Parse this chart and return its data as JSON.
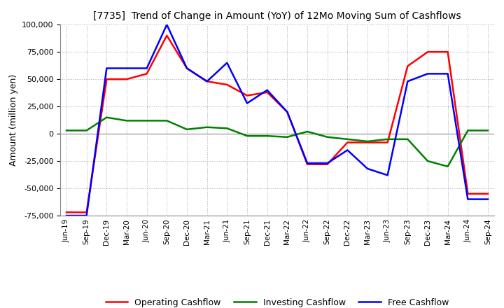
{
  "title": "[7735]  Trend of Change in Amount (YoY) of 12Mo Moving Sum of Cashflows",
  "ylabel": "Amount (million yen)",
  "x_labels": [
    "Jun-19",
    "Sep-19",
    "Dec-19",
    "Mar-20",
    "Jun-20",
    "Sep-20",
    "Dec-20",
    "Mar-21",
    "Jun-21",
    "Sep-21",
    "Dec-21",
    "Mar-22",
    "Jun-22",
    "Sep-22",
    "Dec-22",
    "Mar-23",
    "Jun-23",
    "Sep-23",
    "Dec-23",
    "Mar-24",
    "Jun-24",
    "Sep-24"
  ],
  "operating": [
    -72000,
    -72000,
    50000,
    50000,
    55000,
    90000,
    60000,
    48000,
    45000,
    35000,
    38000,
    20000,
    -28000,
    -28000,
    -8000,
    -8000,
    -8000,
    62000,
    75000,
    75000,
    -55000,
    -55000
  ],
  "investing": [
    3000,
    3000,
    15000,
    12000,
    12000,
    12000,
    4000,
    6000,
    5000,
    -2000,
    -2000,
    -3000,
    2000,
    -3000,
    -5000,
    -7000,
    -5000,
    -5000,
    -25000,
    -30000,
    3000,
    3000
  ],
  "free": [
    -75000,
    -75000,
    60000,
    60000,
    60000,
    100000,
    60000,
    48000,
    65000,
    28000,
    40000,
    20000,
    -27000,
    -27000,
    -15000,
    -32000,
    -38000,
    48000,
    55000,
    55000,
    -60000,
    -60000
  ],
  "operating_color": "#ff0000",
  "investing_color": "#008000",
  "free_color": "#0000ff",
  "background_color": "#ffffff",
  "grid_color": "#aaaaaa",
  "ylim": [
    -75000,
    100000
  ],
  "yticks": [
    -75000,
    -50000,
    -25000,
    0,
    25000,
    50000,
    75000,
    100000
  ],
  "legend_labels": [
    "Operating Cashflow",
    "Investing Cashflow",
    "Free Cashflow"
  ]
}
